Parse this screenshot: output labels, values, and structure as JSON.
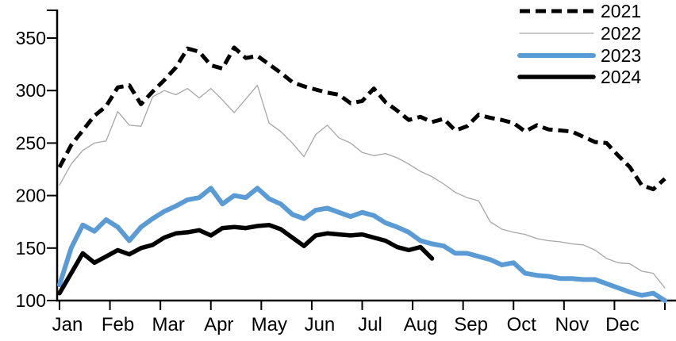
{
  "chart_data": {
    "type": "line",
    "title": "",
    "x_unit": "week-of-year",
    "x_axis": {
      "label": "",
      "categories": [
        "Jan",
        "Feb",
        "Mar",
        "Apr",
        "May",
        "Jun",
        "Jul",
        "Aug",
        "Sep",
        "Oct",
        "Nov",
        "Dec"
      ],
      "weeks_total": 52,
      "extra_end_tick": true
    },
    "y_axis": {
      "label": "",
      "ticks": [
        100,
        150,
        200,
        250,
        300,
        350
      ],
      "range": [
        100,
        375
      ],
      "gridlines": false
    },
    "legend": {
      "position": "top-right",
      "entries": [
        "2021",
        "2022",
        "2023",
        "2024"
      ]
    },
    "colors": {
      "black": "#000000",
      "gray": "#a6a6a6",
      "blue": "#5b9bd5",
      "axis": "#000000",
      "background": "#ffffff"
    },
    "series": [
      {
        "name": "2021",
        "style": "dashed",
        "color": "#000000",
        "width": 5,
        "dash": "13 7",
        "values": [
          227,
          248,
          262,
          276,
          285,
          303,
          305,
          287,
          299,
          310,
          322,
          340,
          337,
          324,
          321,
          341,
          331,
          333,
          325,
          317,
          308,
          304,
          301,
          298,
          296,
          288,
          290,
          302,
          289,
          281,
          272,
          275,
          270,
          273,
          262,
          266,
          277,
          274,
          272,
          269,
          261,
          267,
          263,
          262,
          261,
          256,
          251,
          250,
          238,
          227,
          210,
          206,
          216
        ]
      },
      {
        "name": "2022",
        "style": "solid",
        "color": "#a6a6a6",
        "width": 1.3,
        "dash": null,
        "values": [
          210,
          230,
          243,
          250,
          252,
          280,
          267,
          266,
          294,
          300,
          296,
          302,
          293,
          302,
          291,
          279,
          292,
          305,
          269,
          261,
          250,
          237,
          258,
          267,
          255,
          250,
          241,
          238,
          240,
          236,
          230,
          223,
          218,
          211,
          203,
          198,
          195,
          175,
          168,
          165,
          163,
          159,
          157,
          156,
          154,
          153,
          148,
          140,
          136,
          135,
          128,
          126,
          112
        ]
      },
      {
        "name": "2023",
        "style": "solid",
        "color": "#5b9bd5",
        "width": 6,
        "dash": null,
        "values": [
          115,
          150,
          172,
          166,
          177,
          170,
          157,
          170,
          178,
          185,
          190,
          196,
          198,
          207,
          192,
          200,
          198,
          207,
          197,
          192,
          182,
          178,
          186,
          188,
          184,
          180,
          184,
          181,
          174,
          170,
          165,
          157,
          154,
          152,
          145,
          145,
          142,
          139,
          134,
          136,
          126,
          124,
          123,
          121,
          121,
          120,
          120,
          116,
          112,
          108,
          105,
          107,
          100
        ]
      },
      {
        "name": "2024",
        "style": "solid",
        "color": "#000000",
        "width": 5.5,
        "dash": null,
        "values": [
          107,
          126,
          145,
          136,
          142,
          148,
          144,
          150,
          153,
          160,
          164,
          165,
          167,
          162,
          169,
          170,
          169,
          171,
          172,
          168,
          160,
          152,
          162,
          164,
          163,
          162,
          163,
          160,
          157,
          151,
          148,
          151,
          140
        ]
      }
    ]
  }
}
